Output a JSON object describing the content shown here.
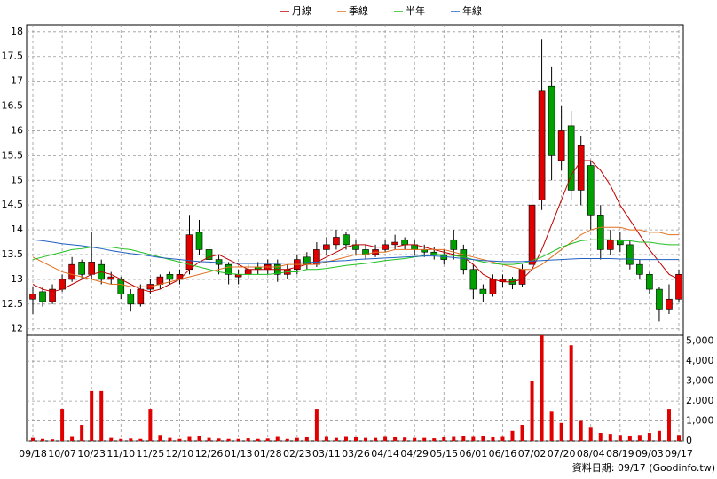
{
  "chart_data": {
    "type": "candlestick",
    "categories": [
      "09/18",
      null,
      null,
      "10/07",
      null,
      null,
      "10/23",
      null,
      null,
      "11/10",
      null,
      null,
      "11/25",
      null,
      null,
      "12/10",
      null,
      null,
      "12/26",
      null,
      null,
      "01/13",
      null,
      null,
      "01/28",
      null,
      null,
      "02/23",
      null,
      null,
      "03/11",
      null,
      null,
      "03/26",
      null,
      null,
      "04/14",
      null,
      null,
      "04/29",
      null,
      null,
      "05/15",
      null,
      null,
      "06/01",
      null,
      null,
      "06/16",
      null,
      null,
      "07/02",
      null,
      null,
      "07/20",
      null,
      null,
      "08/04",
      null,
      null,
      "08/19",
      null,
      null,
      "09/03",
      null,
      null,
      "09/17"
    ],
    "open": [
      12.6,
      12.75,
      12.55,
      12.8,
      13.0,
      13.35,
      13.1,
      13.3,
      13.0,
      13.0,
      12.7,
      12.5,
      12.8,
      12.9,
      13.1,
      13.0,
      13.2,
      13.95,
      13.6,
      13.4,
      13.3,
      13.05,
      13.1,
      13.25,
      13.2,
      13.3,
      13.1,
      13.2,
      13.45,
      13.3,
      13.6,
      13.7,
      13.9,
      13.7,
      13.6,
      13.5,
      13.6,
      13.7,
      13.8,
      13.7,
      13.6,
      13.55,
      13.5,
      13.8,
      13.6,
      13.2,
      12.8,
      12.7,
      12.95,
      13.0,
      12.9,
      13.3,
      14.6,
      16.9,
      15.4,
      16.1,
      14.8,
      15.3,
      14.3,
      13.6,
      13.8,
      13.7,
      13.3,
      13.1,
      12.8,
      12.4,
      12.6
    ],
    "high": [
      12.85,
      12.85,
      12.9,
      13.1,
      13.45,
      13.4,
      13.95,
      13.4,
      13.15,
      13.05,
      12.8,
      12.9,
      13.0,
      13.1,
      13.15,
      13.2,
      14.3,
      14.2,
      13.7,
      13.5,
      13.35,
      13.2,
      13.3,
      13.35,
      13.4,
      13.4,
      13.3,
      13.5,
      13.55,
      13.75,
      13.85,
      14.0,
      13.95,
      13.8,
      13.7,
      13.7,
      13.8,
      13.9,
      13.85,
      13.8,
      13.7,
      13.65,
      13.6,
      14.0,
      13.7,
      13.3,
      12.9,
      13.1,
      13.1,
      13.05,
      13.3,
      14.8,
      17.85,
      17.3,
      16.5,
      16.4,
      15.9,
      15.4,
      14.5,
      14.0,
      13.95,
      13.8,
      13.4,
      13.15,
      12.85,
      12.9,
      13.2
    ],
    "low": [
      12.3,
      12.45,
      12.5,
      12.75,
      12.95,
      13.0,
      13.0,
      12.9,
      12.9,
      12.6,
      12.35,
      12.45,
      12.7,
      12.8,
      12.9,
      12.9,
      13.1,
      13.5,
      13.3,
      13.1,
      12.9,
      12.9,
      13.0,
      13.1,
      13.1,
      12.95,
      13.0,
      13.1,
      13.2,
      13.25,
      13.5,
      13.6,
      13.6,
      13.5,
      13.4,
      13.45,
      13.55,
      13.6,
      13.6,
      13.5,
      13.45,
      13.4,
      13.3,
      13.4,
      13.1,
      12.6,
      12.55,
      12.65,
      12.85,
      12.8,
      12.85,
      13.2,
      14.4,
      15.0,
      15.2,
      14.6,
      14.5,
      14.0,
      13.4,
      13.5,
      13.55,
      13.2,
      13.0,
      12.7,
      12.15,
      12.3,
      12.55
    ],
    "close": [
      12.7,
      12.55,
      12.8,
      13.0,
      13.3,
      13.1,
      13.35,
      13.0,
      13.05,
      12.7,
      12.5,
      12.8,
      12.9,
      13.05,
      13.0,
      13.1,
      13.9,
      13.6,
      13.4,
      13.3,
      13.1,
      13.1,
      13.2,
      13.2,
      13.3,
      13.1,
      13.2,
      13.4,
      13.3,
      13.6,
      13.7,
      13.85,
      13.7,
      13.6,
      13.5,
      13.6,
      13.7,
      13.75,
      13.7,
      13.6,
      13.55,
      13.5,
      13.4,
      13.6,
      13.2,
      12.8,
      12.7,
      13.0,
      13.0,
      12.9,
      13.2,
      14.5,
      16.8,
      15.5,
      16.0,
      14.8,
      15.7,
      14.3,
      13.6,
      13.8,
      13.7,
      13.3,
      13.1,
      12.8,
      12.4,
      12.6,
      13.1
    ],
    "up_color": "#e00000",
    "down_color": "#00a000",
    "ylim": [
      11.87,
      18.14
    ],
    "yticks": [
      12,
      12.5,
      13,
      13.5,
      14,
      14.5,
      15,
      15.5,
      16,
      16.5,
      17,
      17.5,
      18
    ],
    "grid": true,
    "series": [
      {
        "name": "月線",
        "color": "#c00000",
        "values": [
          12.9,
          12.8,
          12.75,
          12.8,
          12.9,
          13.0,
          13.1,
          13.15,
          13.1,
          13.0,
          12.9,
          12.8,
          12.75,
          12.8,
          12.9,
          13.0,
          13.2,
          13.35,
          13.45,
          13.5,
          13.4,
          13.3,
          13.2,
          13.2,
          13.2,
          13.2,
          13.2,
          13.25,
          13.3,
          13.35,
          13.45,
          13.55,
          13.65,
          13.7,
          13.7,
          13.65,
          13.65,
          13.65,
          13.7,
          13.7,
          13.65,
          13.6,
          13.55,
          13.5,
          13.45,
          13.3,
          13.1,
          13.0,
          12.95,
          12.95,
          13.0,
          13.2,
          13.6,
          14.1,
          14.6,
          15.1,
          15.4,
          15.4,
          15.2,
          14.9,
          14.5,
          14.2,
          13.9,
          13.6,
          13.35,
          13.1,
          13.0
        ]
      },
      {
        "name": "季線",
        "color": "#e07020",
        "values": [
          13.45,
          13.35,
          13.25,
          13.15,
          13.1,
          13.05,
          13.0,
          12.95,
          12.9,
          12.9,
          12.85,
          12.85,
          12.85,
          12.9,
          12.95,
          13.0,
          13.05,
          13.1,
          13.15,
          13.2,
          13.25,
          13.25,
          13.25,
          13.25,
          13.25,
          13.25,
          13.3,
          13.3,
          13.3,
          13.3,
          13.35,
          13.4,
          13.45,
          13.5,
          13.5,
          13.55,
          13.55,
          13.6,
          13.6,
          13.6,
          13.6,
          13.6,
          13.6,
          13.55,
          13.5,
          13.45,
          13.4,
          13.35,
          13.3,
          13.25,
          13.2,
          13.2,
          13.3,
          13.45,
          13.6,
          13.75,
          13.9,
          14.0,
          14.05,
          14.05,
          14.05,
          14.0,
          14.0,
          13.95,
          13.95,
          13.9,
          13.9
        ]
      },
      {
        "name": "半年",
        "color": "#20c020",
        "values": [
          13.4,
          13.45,
          13.5,
          13.55,
          13.6,
          13.62,
          13.65,
          13.65,
          13.65,
          13.62,
          13.6,
          13.55,
          13.5,
          13.45,
          13.4,
          13.35,
          13.3,
          13.25,
          13.2,
          13.15,
          13.12,
          13.1,
          13.1,
          13.1,
          13.1,
          13.12,
          13.15,
          13.15,
          13.2,
          13.2,
          13.22,
          13.25,
          13.28,
          13.3,
          13.32,
          13.35,
          13.38,
          13.4,
          13.42,
          13.45,
          13.48,
          13.5,
          13.5,
          13.48,
          13.45,
          13.4,
          13.35,
          13.32,
          13.3,
          13.3,
          13.32,
          13.38,
          13.45,
          13.55,
          13.65,
          13.72,
          13.78,
          13.8,
          13.8,
          13.8,
          13.78,
          13.78,
          13.75,
          13.75,
          13.72,
          13.7,
          13.7
        ]
      },
      {
        "name": "年線",
        "color": "#2060c0",
        "values": [
          13.8,
          13.78,
          13.75,
          13.72,
          13.7,
          13.68,
          13.65,
          13.62,
          13.58,
          13.55,
          13.52,
          13.5,
          13.47,
          13.44,
          13.42,
          13.4,
          13.38,
          13.36,
          13.35,
          13.34,
          13.33,
          13.32,
          13.32,
          13.32,
          13.32,
          13.32,
          13.33,
          13.33,
          13.34,
          13.35,
          13.36,
          13.37,
          13.38,
          13.4,
          13.41,
          13.42,
          13.43,
          13.44,
          13.45,
          13.46,
          13.47,
          13.47,
          13.46,
          13.44,
          13.42,
          13.4,
          13.38,
          13.37,
          13.36,
          13.36,
          13.36,
          13.37,
          13.38,
          13.39,
          13.4,
          13.41,
          13.42,
          13.42,
          13.42,
          13.42,
          13.41,
          13.41,
          13.4,
          13.4,
          13.4,
          13.4,
          13.4
        ]
      }
    ],
    "volume": {
      "color": "#e00000",
      "values": [
        150,
        100,
        80,
        1600,
        200,
        800,
        2500,
        2500,
        150,
        100,
        120,
        100,
        1600,
        300,
        150,
        100,
        200,
        250,
        150,
        120,
        100,
        100,
        130,
        100,
        120,
        200,
        100,
        150,
        180,
        1600,
        200,
        150,
        200,
        180,
        150,
        150,
        200,
        180,
        170,
        150,
        150,
        130,
        180,
        200,
        250,
        200,
        250,
        180,
        200,
        500,
        800,
        3000,
        5300,
        1500,
        900,
        4800,
        1000,
        700,
        400,
        350,
        300,
        250,
        300,
        400,
        500,
        1600,
        300
      ],
      "ylim": [
        0,
        5300
      ],
      "yticks": [
        0,
        {
          "value": 1000,
          "label": "1,000"
        },
        {
          "value": 2000,
          "label": "2,000"
        },
        {
          "value": 3000,
          "label": "3,000"
        },
        {
          "value": 4000,
          "label": "4,000"
        },
        {
          "value": 5000,
          "label": "5,000"
        }
      ]
    },
    "footnote": "資料日期: 09/17 (Goodinfo.tw)"
  }
}
